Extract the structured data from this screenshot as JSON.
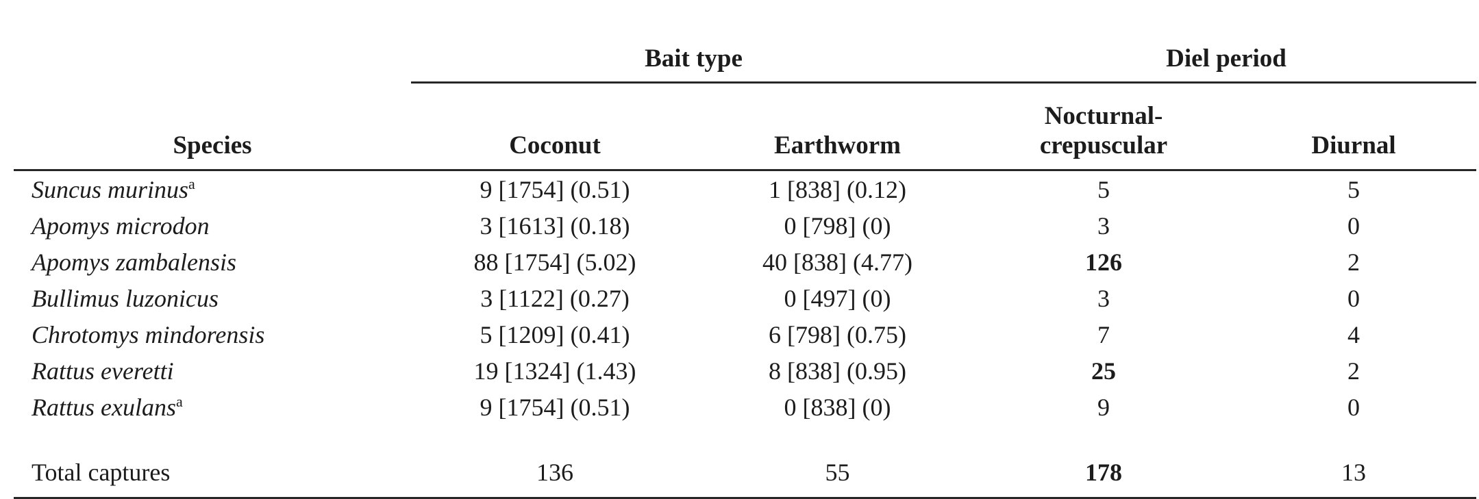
{
  "table": {
    "group_header": {
      "bait_type": "Bait type",
      "diel_period": "Diel period"
    },
    "columns": {
      "species": "Species",
      "coconut": "Coconut",
      "earthworm": "Earthworm",
      "nocturnal": "Nocturnal-crepuscular",
      "diurnal": "Diurnal"
    },
    "rows": [
      {
        "species": "Suncus murinus",
        "sup": "a",
        "coconut": "9 [1754] (0.51)",
        "earthworm": "1 [838] (0.12)",
        "nocturnal": "5",
        "diurnal": "5"
      },
      {
        "species": "Apomys microdon",
        "sup": "",
        "coconut": "3 [1613] (0.18)",
        "earthworm": "0 [798] (0)",
        "nocturnal": "3",
        "diurnal": "0"
      },
      {
        "species": "Apomys zambalensis",
        "sup": "",
        "coconut": "88 [1754] (5.02)",
        "earthworm": "40 [838] (4.77)",
        "nocturnal": "126",
        "diurnal": "2"
      },
      {
        "species": "Bullimus luzonicus",
        "sup": "",
        "coconut": "3 [1122] (0.27)",
        "earthworm": "0 [497] (0)",
        "nocturnal": "3",
        "diurnal": "0"
      },
      {
        "species": "Chrotomys mindorensis",
        "sup": "",
        "coconut": "5 [1209] (0.41)",
        "earthworm": "6 [798] (0.75)",
        "nocturnal": "7",
        "diurnal": "4"
      },
      {
        "species": "Rattus everetti",
        "sup": "",
        "coconut": "19 [1324] (1.43)",
        "earthworm": "8 [838] (0.95)",
        "nocturnal": "25",
        "diurnal": "2"
      },
      {
        "species": "Rattus exulans",
        "sup": "a",
        "coconut": "9 [1754] (0.51)",
        "earthworm": "0 [838] (0)",
        "nocturnal": "9",
        "diurnal": "0"
      }
    ],
    "total": {
      "label": "Total captures",
      "coconut": "136",
      "earthworm": "55",
      "nocturnal": "178",
      "diurnal": "13"
    }
  }
}
